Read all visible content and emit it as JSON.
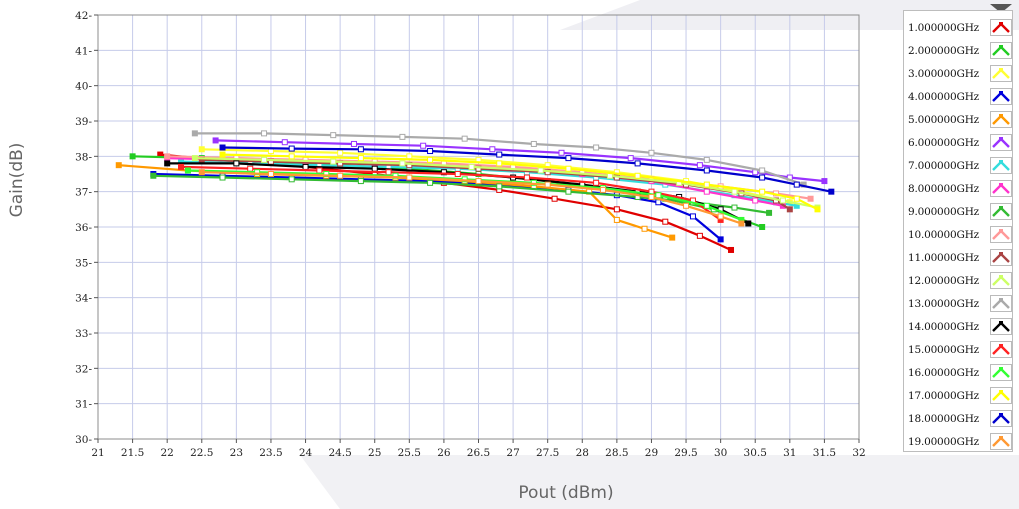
{
  "chart_data": {
    "type": "line",
    "xlabel": "Pout (dBm)",
    "ylabel": "Gain(dB)",
    "xlim": [
      21,
      32
    ],
    "ylim": [
      30,
      42
    ],
    "x_ticks": [
      "21",
      "21.5",
      "22",
      "22.5",
      "23",
      "23.5",
      "24",
      "24.5",
      "25",
      "25.5",
      "26",
      "26.5",
      "27",
      "27.5",
      "28",
      "28.5",
      "29",
      "29.5",
      "30",
      "30.5",
      "31",
      "31.5",
      "32"
    ],
    "y_ticks": [
      "30",
      "31",
      "32",
      "33",
      "34",
      "35",
      "36",
      "37",
      "38",
      "39",
      "40",
      "41",
      "42"
    ],
    "grid": true,
    "legend_position": "right",
    "series": [
      {
        "name": "1.000000GHz",
        "color": "#e00000",
        "points": [
          [
            21.9,
            38.05
          ],
          [
            23,
            37.85
          ],
          [
            24,
            37.7
          ],
          [
            25,
            37.5
          ],
          [
            26,
            37.25
          ],
          [
            26.8,
            37.05
          ],
          [
            27.6,
            36.8
          ],
          [
            28.5,
            36.5
          ],
          [
            29.2,
            36.15
          ],
          [
            29.7,
            35.75
          ],
          [
            30.15,
            35.35
          ]
        ]
      },
      {
        "name": "2.000000GHz",
        "color": "#22cc22",
        "points": [
          [
            21.5,
            38.0
          ],
          [
            22.5,
            37.95
          ],
          [
            23.5,
            37.85
          ],
          [
            24.5,
            37.75
          ],
          [
            25.5,
            37.65
          ],
          [
            26.5,
            37.5
          ],
          [
            27.5,
            37.3
          ],
          [
            28.3,
            37.1
          ],
          [
            29.2,
            36.8
          ],
          [
            29.9,
            36.5
          ],
          [
            30.6,
            36.0
          ]
        ]
      },
      {
        "name": "3.000000GHz",
        "color": "#ffff33",
        "points": [
          [
            22.5,
            38.2
          ],
          [
            23.5,
            38.15
          ],
          [
            24.5,
            38.1
          ],
          [
            25.5,
            38.0
          ],
          [
            26.5,
            37.9
          ],
          [
            27.5,
            37.75
          ],
          [
            28.5,
            37.55
          ],
          [
            29.5,
            37.3
          ],
          [
            30.3,
            37.0
          ],
          [
            31.0,
            36.7
          ]
        ]
      },
      {
        "name": "4.000000GHz",
        "color": "#0000dd",
        "points": [
          [
            21.8,
            37.5
          ],
          [
            22.8,
            37.45
          ],
          [
            23.8,
            37.4
          ],
          [
            24.8,
            37.35
          ],
          [
            25.8,
            37.3
          ],
          [
            26.8,
            37.2
          ],
          [
            27.8,
            37.05
          ],
          [
            28.5,
            36.9
          ],
          [
            29.1,
            36.7
          ],
          [
            29.6,
            36.3
          ],
          [
            30.0,
            35.65
          ]
        ]
      },
      {
        "name": "5.000000GHz",
        "color": "#ff9900",
        "points": [
          [
            21.3,
            37.75
          ],
          [
            22.3,
            37.6
          ],
          [
            23.3,
            37.5
          ],
          [
            24.3,
            37.45
          ],
          [
            25.3,
            37.4
          ],
          [
            26.3,
            37.3
          ],
          [
            27.3,
            37.15
          ],
          [
            28.1,
            37.0
          ],
          [
            28.5,
            36.2
          ],
          [
            28.9,
            35.95
          ],
          [
            29.3,
            35.7
          ]
        ]
      },
      {
        "name": "6.000000GHz",
        "color": "#9933ff",
        "points": [
          [
            22.7,
            38.45
          ],
          [
            23.7,
            38.4
          ],
          [
            24.7,
            38.35
          ],
          [
            25.7,
            38.3
          ],
          [
            26.7,
            38.2
          ],
          [
            27.7,
            38.1
          ],
          [
            28.7,
            37.95
          ],
          [
            29.7,
            37.75
          ],
          [
            30.5,
            37.55
          ],
          [
            31.0,
            37.4
          ],
          [
            31.5,
            37.3
          ]
        ]
      },
      {
        "name": "7.000000GHz",
        "color": "#33dddd",
        "points": [
          [
            22.2,
            37.85
          ],
          [
            23.2,
            37.8
          ],
          [
            24.2,
            37.75
          ],
          [
            25.2,
            37.7
          ],
          [
            26.2,
            37.65
          ],
          [
            27.2,
            37.55
          ],
          [
            28.2,
            37.4
          ],
          [
            29.2,
            37.2
          ],
          [
            30.2,
            36.9
          ],
          [
            30.8,
            36.7
          ],
          [
            31.1,
            36.6
          ]
        ]
      },
      {
        "name": "8.000000GHz",
        "color": "#ff33cc",
        "points": [
          [
            22.0,
            37.95
          ],
          [
            23.0,
            37.9
          ],
          [
            24.0,
            37.85
          ],
          [
            25.0,
            37.8
          ],
          [
            26.0,
            37.75
          ],
          [
            27.0,
            37.65
          ],
          [
            28.0,
            37.5
          ],
          [
            29.0,
            37.3
          ],
          [
            29.8,
            37.0
          ],
          [
            30.5,
            36.75
          ],
          [
            30.9,
            36.6
          ]
        ]
      },
      {
        "name": "9.000000GHz",
        "color": "#33bb33",
        "points": [
          [
            21.8,
            37.45
          ],
          [
            22.8,
            37.4
          ],
          [
            23.8,
            37.35
          ],
          [
            24.8,
            37.3
          ],
          [
            25.8,
            37.25
          ],
          [
            26.8,
            37.15
          ],
          [
            27.8,
            37.0
          ],
          [
            28.8,
            36.85
          ],
          [
            29.6,
            36.7
          ],
          [
            30.2,
            36.55
          ],
          [
            30.7,
            36.4
          ]
        ]
      },
      {
        "name": "10.00000GHz",
        "color": "#ff9999",
        "points": [
          [
            22.0,
            38.0
          ],
          [
            23.0,
            37.95
          ],
          [
            24.0,
            37.9
          ],
          [
            25.0,
            37.85
          ],
          [
            26.0,
            37.8
          ],
          [
            27.0,
            37.7
          ],
          [
            28.0,
            37.55
          ],
          [
            29.0,
            37.35
          ],
          [
            30.0,
            37.15
          ],
          [
            30.8,
            36.95
          ],
          [
            31.3,
            36.8
          ]
        ]
      },
      {
        "name": "11.00000GHz",
        "color": "#aa4444",
        "points": [
          [
            22.5,
            37.9
          ],
          [
            23.5,
            37.85
          ],
          [
            24.5,
            37.8
          ],
          [
            25.5,
            37.75
          ],
          [
            26.5,
            37.65
          ],
          [
            27.5,
            37.55
          ],
          [
            28.5,
            37.4
          ],
          [
            29.5,
            37.2
          ],
          [
            30.3,
            36.95
          ],
          [
            30.8,
            36.75
          ],
          [
            31.0,
            36.5
          ]
        ]
      },
      {
        "name": "12.00000GHz",
        "color": "#ccff66",
        "points": [
          [
            22.4,
            37.95
          ],
          [
            23.4,
            37.9
          ],
          [
            24.4,
            37.85
          ],
          [
            25.4,
            37.8
          ],
          [
            26.4,
            37.7
          ],
          [
            27.4,
            37.6
          ],
          [
            28.4,
            37.45
          ],
          [
            29.4,
            37.25
          ],
          [
            30.2,
            37.0
          ],
          [
            30.9,
            36.75
          ],
          [
            31.4,
            36.55
          ]
        ]
      },
      {
        "name": "13.00000GHz",
        "color": "#aaaaaa",
        "points": [
          [
            22.4,
            38.65
          ],
          [
            23.4,
            38.65
          ],
          [
            24.4,
            38.6
          ],
          [
            25.4,
            38.55
          ],
          [
            26.3,
            38.5
          ],
          [
            27.3,
            38.35
          ],
          [
            28.2,
            38.25
          ],
          [
            29.0,
            38.1
          ],
          [
            29.8,
            37.9
          ],
          [
            30.6,
            37.6
          ],
          [
            31.2,
            37.2
          ]
        ]
      },
      {
        "name": "14.00000GHz",
        "color": "#000000",
        "points": [
          [
            22.0,
            37.8
          ],
          [
            23.0,
            37.8
          ],
          [
            24.0,
            37.7
          ],
          [
            25.0,
            37.65
          ],
          [
            26.0,
            37.55
          ],
          [
            27.0,
            37.4
          ],
          [
            28.0,
            37.2
          ],
          [
            28.8,
            37.0
          ],
          [
            29.4,
            36.85
          ],
          [
            30.0,
            36.5
          ],
          [
            30.4,
            36.1
          ]
        ]
      },
      {
        "name": "15.00000GHz",
        "color": "#ff2222",
        "points": [
          [
            22.2,
            37.7
          ],
          [
            23.2,
            37.65
          ],
          [
            24.2,
            37.6
          ],
          [
            25.2,
            37.55
          ],
          [
            26.2,
            37.5
          ],
          [
            27.2,
            37.4
          ],
          [
            28.2,
            37.25
          ],
          [
            29.0,
            37.0
          ],
          [
            29.6,
            36.75
          ],
          [
            30.0,
            36.2
          ]
        ]
      },
      {
        "name": "16.00000GHz",
        "color": "#33ff33",
        "points": [
          [
            22.3,
            37.6
          ],
          [
            23.3,
            37.55
          ],
          [
            24.3,
            37.5
          ],
          [
            25.3,
            37.45
          ],
          [
            26.3,
            37.35
          ],
          [
            27.3,
            37.25
          ],
          [
            28.3,
            37.1
          ],
          [
            29.1,
            36.9
          ],
          [
            29.8,
            36.6
          ],
          [
            30.3,
            36.2
          ]
        ]
      },
      {
        "name": "17.00000GHz",
        "color": "#ffff00",
        "points": [
          [
            22.8,
            38.05
          ],
          [
            23.8,
            38.0
          ],
          [
            24.8,
            37.95
          ],
          [
            25.8,
            37.9
          ],
          [
            26.8,
            37.8
          ],
          [
            27.8,
            37.65
          ],
          [
            28.8,
            37.45
          ],
          [
            29.8,
            37.2
          ],
          [
            30.6,
            37.0
          ],
          [
            31.1,
            36.8
          ],
          [
            31.4,
            36.5
          ]
        ]
      },
      {
        "name": "18.00000GHz",
        "color": "#0000cc",
        "points": [
          [
            22.8,
            38.25
          ],
          [
            23.8,
            38.22
          ],
          [
            24.8,
            38.2
          ],
          [
            25.8,
            38.15
          ],
          [
            26.8,
            38.05
          ],
          [
            27.8,
            37.95
          ],
          [
            28.8,
            37.8
          ],
          [
            29.8,
            37.6
          ],
          [
            30.6,
            37.4
          ],
          [
            31.1,
            37.2
          ],
          [
            31.6,
            37.0
          ]
        ]
      },
      {
        "name": "19.00000GHz",
        "color": "#ff9933",
        "points": [
          [
            22.5,
            37.55
          ],
          [
            23.5,
            37.5
          ],
          [
            24.5,
            37.45
          ],
          [
            25.5,
            37.4
          ],
          [
            26.5,
            37.3
          ],
          [
            27.5,
            37.2
          ],
          [
            28.3,
            37.05
          ],
          [
            29.0,
            36.85
          ],
          [
            29.5,
            36.6
          ],
          [
            30.0,
            36.3
          ],
          [
            30.3,
            36.1
          ]
        ]
      }
    ]
  }
}
